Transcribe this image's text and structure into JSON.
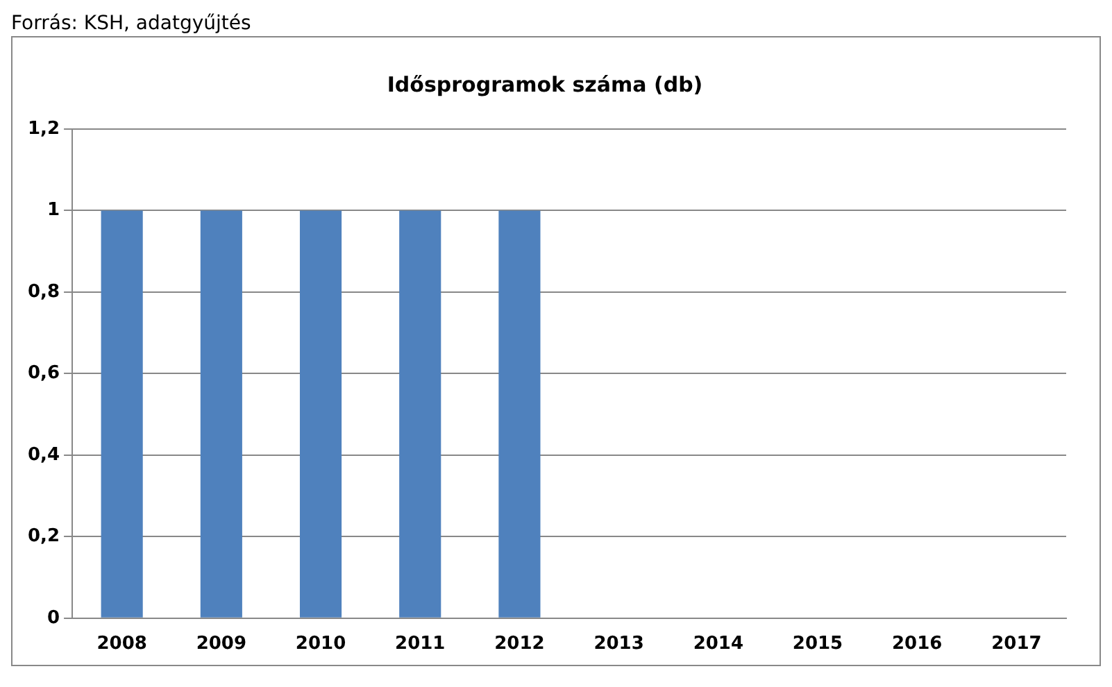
{
  "chart_data": {
    "type": "bar",
    "title": "Idősprogramok száma (db)",
    "annotations": [
      "Forrás: KSH, adatgyűjtés"
    ],
    "categories": [
      "2008",
      "2009",
      "2010",
      "2011",
      "2012",
      "2013",
      "2014",
      "2015",
      "2016",
      "2017"
    ],
    "values": [
      1,
      1,
      1,
      1,
      1,
      0,
      0,
      0,
      0,
      0
    ],
    "color": "#4f81bd",
    "ylim": [
      0,
      1.2
    ],
    "yticks": [
      {
        "value": 0,
        "label": "0"
      },
      {
        "value": 0.2,
        "label": "0,2"
      },
      {
        "value": 0.4,
        "label": "0,4"
      },
      {
        "value": 0.6,
        "label": "0,6"
      },
      {
        "value": 0.8,
        "label": "0,8"
      },
      {
        "value": 1,
        "label": "1"
      },
      {
        "value": 1.2,
        "label": "1,2"
      }
    ],
    "grid": "y"
  }
}
